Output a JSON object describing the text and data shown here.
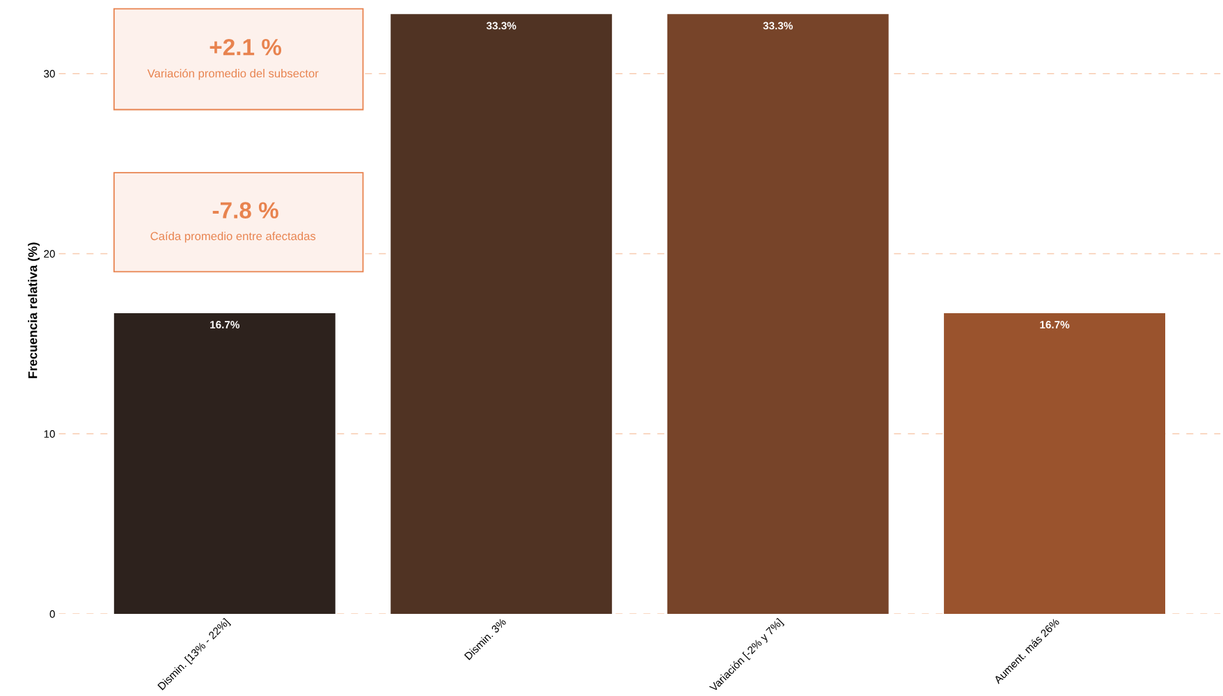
{
  "chart_data": {
    "type": "bar",
    "ylabel": "Frecuencia relativa (%)",
    "categories": [
      "Dismin. [13% - 22%]",
      "Dismin. 3%",
      "Variación [-2% y 7%]",
      "Aument. más 26%"
    ],
    "values": [
      16.7,
      33.3,
      33.3,
      16.7
    ],
    "colors": [
      "#2d221d",
      "#503323",
      "#774429",
      "#9a532d"
    ],
    "value_labels": [
      "16.7%",
      "33.3%",
      "33.3%",
      "16.7%"
    ],
    "ylim": [
      0,
      33.7
    ],
    "yticks": [
      0,
      10,
      20,
      30
    ],
    "grid": "y",
    "line_style": "dashed",
    "annotations": [
      "+2.1 %",
      "Variación promedio del subsector",
      "-7.8 %",
      "Caída promedio entre afectadas"
    ]
  }
}
